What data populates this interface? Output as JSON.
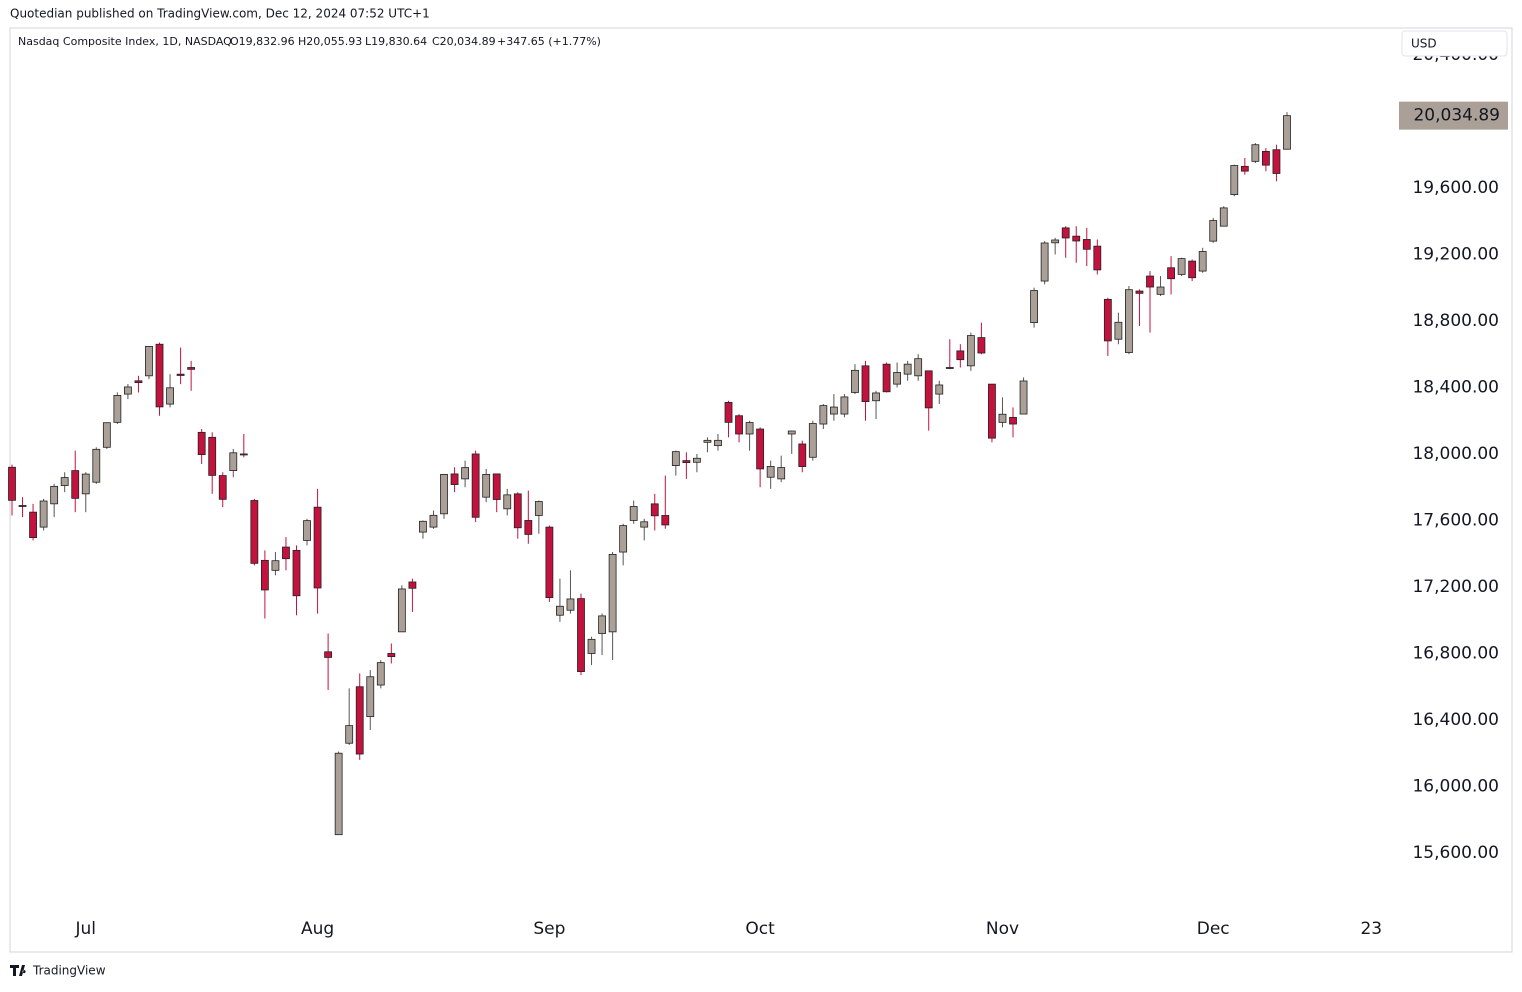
{
  "published": "Quotedian published on TradingView.com, Dec 12, 2024 07:52 UTC+1",
  "footer": "TradingView",
  "currency": "USD",
  "header": {
    "symbol": "Nasdaq Composite Index, 1D, NASDAQ",
    "open": "O19,832.96",
    "high": "H20,055.93",
    "low": "L19,830.64",
    "close": "C20,034.89",
    "change": "+347.65 (+1.77%)"
  },
  "chart_data": {
    "type": "candlestick",
    "up_color": "#aaa097",
    "down_color": "#c4123e",
    "last_price_label": "20,034.89",
    "ylim": [
      15257,
      20550
    ],
    "yticks": [
      {
        "value": 15600,
        "label": "15,600.00"
      },
      {
        "value": 16000,
        "label": "16,000.00"
      },
      {
        "value": 16400,
        "label": "16,400.00"
      },
      {
        "value": 16800,
        "label": "16,800.00"
      },
      {
        "value": 17200,
        "label": "17,200.00"
      },
      {
        "value": 17600,
        "label": "17,600.00"
      },
      {
        "value": 18000,
        "label": "18,000.00"
      },
      {
        "value": 18400,
        "label": "18,400.00"
      },
      {
        "value": 18800,
        "label": "18,800.00"
      },
      {
        "value": 19200,
        "label": "19,200.00"
      },
      {
        "value": 19600,
        "label": "19,600.00"
      },
      {
        "value": 20000,
        "label": "20,000.00"
      },
      {
        "value": 20400,
        "label": "20,400.00"
      }
    ],
    "categories": [
      null,
      null,
      null,
      null,
      null,
      null,
      null,
      "Jul",
      null,
      null,
      null,
      null,
      null,
      null,
      null,
      null,
      null,
      null,
      null,
      null,
      null,
      null,
      null,
      null,
      null,
      null,
      null,
      null,
      null,
      "Aug",
      null,
      null,
      null,
      null,
      null,
      null,
      null,
      null,
      null,
      null,
      null,
      null,
      null,
      null,
      null,
      null,
      null,
      null,
      null,
      null,
      null,
      "Sep",
      null,
      null,
      null,
      null,
      null,
      null,
      null,
      null,
      null,
      null,
      null,
      null,
      null,
      null,
      null,
      null,
      null,
      null,
      null,
      "Oct",
      null,
      null,
      null,
      null,
      null,
      null,
      null,
      null,
      null,
      null,
      null,
      null,
      null,
      null,
      null,
      null,
      null,
      null,
      null,
      null,
      null,
      null,
      "Nov",
      null,
      null,
      null,
      null,
      null,
      null,
      null,
      null,
      null,
      null,
      null,
      null,
      null,
      null,
      null,
      null,
      null,
      null,
      null,
      "Dec",
      null,
      null,
      null,
      null,
      null,
      null,
      null,
      null,
      null,
      null,
      null,
      null,
      null,
      null,
      "23"
    ],
    "open": [
      17920,
      17690,
      17650,
      17560,
      17700,
      17810,
      17900,
      17760,
      17830,
      18040,
      18190,
      18360,
      18440,
      18470,
      18660,
      18300,
      18480,
      18520,
      18130,
      18100,
      17870,
      17900,
      18000,
      17720,
      17360,
      17300,
      17440,
      17420,
      17480,
      17680,
      16810,
      15710,
      16260,
      16600,
      16420,
      16610,
      16800,
      16930,
      17230,
      17530,
      17560,
      17640,
      17880,
      17850,
      18000,
      17740,
      17880,
      17670,
      17760,
      17600,
      17630,
      17560,
      17030,
      17060,
      17130,
      16800,
      16920,
      16930,
      17410,
      17600,
      17560,
      17700,
      17630,
      17930,
      17960,
      17950,
      18070,
      18050,
      18310,
      18230,
      18120,
      18150,
      17860,
      17850,
      18120,
      18060,
      17980,
      18180,
      18240,
      18240,
      18370,
      18530,
      18320,
      18540,
      18420,
      18480,
      18470,
      18500,
      18360,
      18520,
      18620,
      18530,
      18700,
      18420,
      18190,
      18220,
      18240,
      18790,
      19040,
      19270,
      19360,
      19310,
      19290,
      19250,
      18930,
      18690,
      18610,
      18980,
      19070,
      18960,
      19120,
      19080,
      19160,
      19100,
      19280,
      19370,
      19560,
      19730,
      19760,
      19820,
      19830,
      19832.96,
      null,
      null,
      null,
      null,
      null,
      null,
      null,
      null
    ],
    "high": [
      17936,
      17740,
      17700,
      17730,
      17820,
      17890,
      18020,
      17890,
      18040,
      18190,
      18370,
      18420,
      18470,
      18650,
      18670,
      18480,
      18640,
      18560,
      18150,
      18130,
      17890,
      18030,
      18120,
      17730,
      17420,
      17410,
      17500,
      17450,
      17610,
      17790,
      16920,
      16210,
      16590,
      16680,
      16700,
      16760,
      16860,
      17210,
      17250,
      17600,
      17660,
      17880,
      17920,
      17960,
      18020,
      17910,
      17880,
      17790,
      17770,
      17780,
      17720,
      17570,
      17250,
      17300,
      17160,
      16900,
      17040,
      17410,
      17580,
      17720,
      17610,
      17760,
      17870,
      18020,
      18010,
      18000,
      18100,
      18120,
      18320,
      18240,
      18200,
      18160,
      17960,
      17990,
      18140,
      18080,
      18200,
      18300,
      18360,
      18360,
      18540,
      18560,
      18380,
      18550,
      18550,
      18560,
      18600,
      18500,
      18440,
      18690,
      18660,
      18730,
      18790,
      18420,
      18340,
      18280,
      18460,
      19000,
      19280,
      19300,
      19370,
      19370,
      19360,
      19290,
      18940,
      18850,
      19010,
      18990,
      19100,
      19070,
      19190,
      19180,
      19170,
      19240,
      19420,
      19490,
      19740,
      19780,
      19870,
      19840,
      19860,
      20055.93,
      null,
      null,
      null,
      null,
      null,
      null,
      null,
      null
    ],
    "low": [
      17630,
      17620,
      17480,
      17540,
      17620,
      17770,
      17650,
      17650,
      17820,
      18030,
      18180,
      18330,
      18370,
      18450,
      18230,
      18280,
      18420,
      18380,
      17940,
      17760,
      17680,
      17860,
      17980,
      17330,
      17010,
      17270,
      17300,
      17030,
      17450,
      17040,
      16580,
      15708,
      16250,
      16160,
      16340,
      16590,
      16740,
      16930,
      17050,
      17490,
      17550,
      17610,
      17770,
      17800,
      17590,
      17710,
      17650,
      17630,
      17490,
      17460,
      17520,
      17110,
      16990,
      17040,
      16670,
      16730,
      16790,
      16760,
      17330,
      17580,
      17480,
      17540,
      17550,
      17870,
      17850,
      17890,
      18010,
      18020,
      18100,
      18070,
      18020,
      17800,
      17790,
      17830,
      18000,
      17890,
      17960,
      18150,
      18200,
      18220,
      18360,
      18200,
      18210,
      18370,
      18400,
      18440,
      18440,
      18140,
      18300,
      18510,
      18520,
      18500,
      18600,
      18070,
      18160,
      18100,
      18240,
      18760,
      19020,
      19200,
      19180,
      19150,
      19130,
      19080,
      18590,
      18660,
      18600,
      18770,
      18730,
      18950,
      18960,
      19070,
      19040,
      19090,
      19270,
      19370,
      19550,
      19680,
      19750,
      19700,
      19640,
      19830.64,
      null,
      null,
      null,
      null,
      null,
      null,
      null,
      null
    ],
    "close": [
      17721,
      17689,
      17497,
      17717,
      17805,
      17858,
      17733,
      17879,
      18028,
      18188,
      18352,
      18403,
      18429,
      18647,
      18283,
      18398,
      18472,
      18509,
      17996,
      17871,
      17727,
      18007,
      17997,
      17342,
      17182,
      17358,
      17370,
      17147,
      17599,
      17194,
      16776,
      16200,
      16366,
      16195,
      16660,
      16745,
      16781,
      17188,
      17192,
      17595,
      17631,
      17877,
      17816,
      17918,
      17619,
      17877,
      17726,
      17754,
      17556,
      17516,
      17714,
      17136,
      17084,
      17128,
      16691,
      16885,
      17026,
      17396,
      17569,
      17684,
      17592,
      17628,
      17573,
      18014,
      17948,
      17974,
      18082,
      18082,
      18190,
      18120,
      18189,
      17910,
      17925,
      17918,
      18138,
      17924,
      18183,
      18291,
      18282,
      18343,
      18503,
      18315,
      18367,
      18374,
      18490,
      18540,
      18573,
      18277,
      18415,
      18519,
      18567,
      18712,
      18607,
      18095,
      18239,
      18180,
      18439,
      18983,
      19269,
      19287,
      19299,
      19281,
      19231,
      19107,
      18680,
      18792,
      18988,
      18966,
      19004,
      19004,
      19054,
      19175,
      19060,
      19218,
      19404,
      19480,
      19735,
      19701,
      19860,
      19737,
      19687,
      20034.89,
      null,
      null,
      null,
      null,
      null,
      null,
      null,
      null
    ]
  }
}
